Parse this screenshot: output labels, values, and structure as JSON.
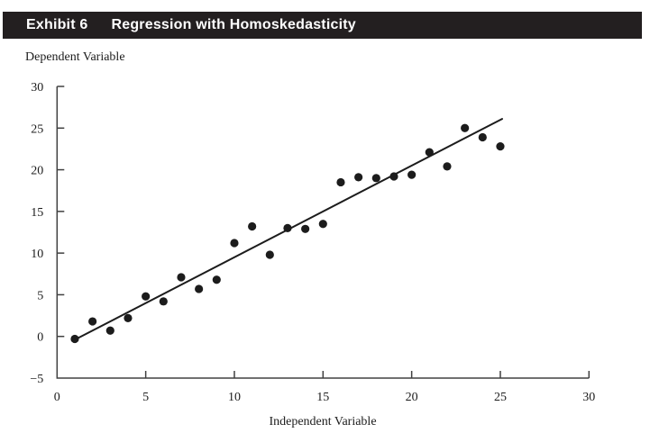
{
  "header": {
    "exhibit_label": "Exhibit 6",
    "title": "Regression with Homoskedasticity",
    "bar_color": "#231f20",
    "text_color": "#ffffff"
  },
  "chart_data": {
    "type": "scatter",
    "title": "Regression with Homoskedasticity",
    "xlabel": "Independent Variable",
    "ylabel": "Dependent Variable",
    "xlim": [
      0,
      30
    ],
    "ylim": [
      -5,
      30
    ],
    "xticks": [
      0,
      5,
      10,
      15,
      20,
      25,
      30
    ],
    "yticks": [
      30,
      25,
      20,
      15,
      10,
      5,
      0,
      -5
    ],
    "grid": false,
    "legend": null,
    "points": [
      [
        1,
        -0.3
      ],
      [
        2,
        1.8
      ],
      [
        3,
        0.7
      ],
      [
        4,
        2.2
      ],
      [
        5,
        4.8
      ],
      [
        6,
        4.2
      ],
      [
        7,
        7.1
      ],
      [
        8,
        5.7
      ],
      [
        9,
        6.8
      ],
      [
        10,
        11.2
      ],
      [
        11,
        13.2
      ],
      [
        12,
        9.8
      ],
      [
        13,
        13.0
      ],
      [
        14,
        12.9
      ],
      [
        15,
        13.5
      ],
      [
        16,
        18.5
      ],
      [
        17,
        19.1
      ],
      [
        18,
        19.0
      ],
      [
        19,
        19.2
      ],
      [
        20,
        19.4
      ],
      [
        21,
        22.1
      ],
      [
        22,
        20.4
      ],
      [
        23,
        25.0
      ],
      [
        24,
        23.9
      ],
      [
        25,
        22.8
      ]
    ],
    "trendline": {
      "x1": 1.0,
      "y1": -0.4,
      "x2": 25.1,
      "y2": 26.1
    },
    "point_color": "#1c1c1c",
    "trendline_color": "#1c1c1c",
    "axis_color": "#404040"
  }
}
